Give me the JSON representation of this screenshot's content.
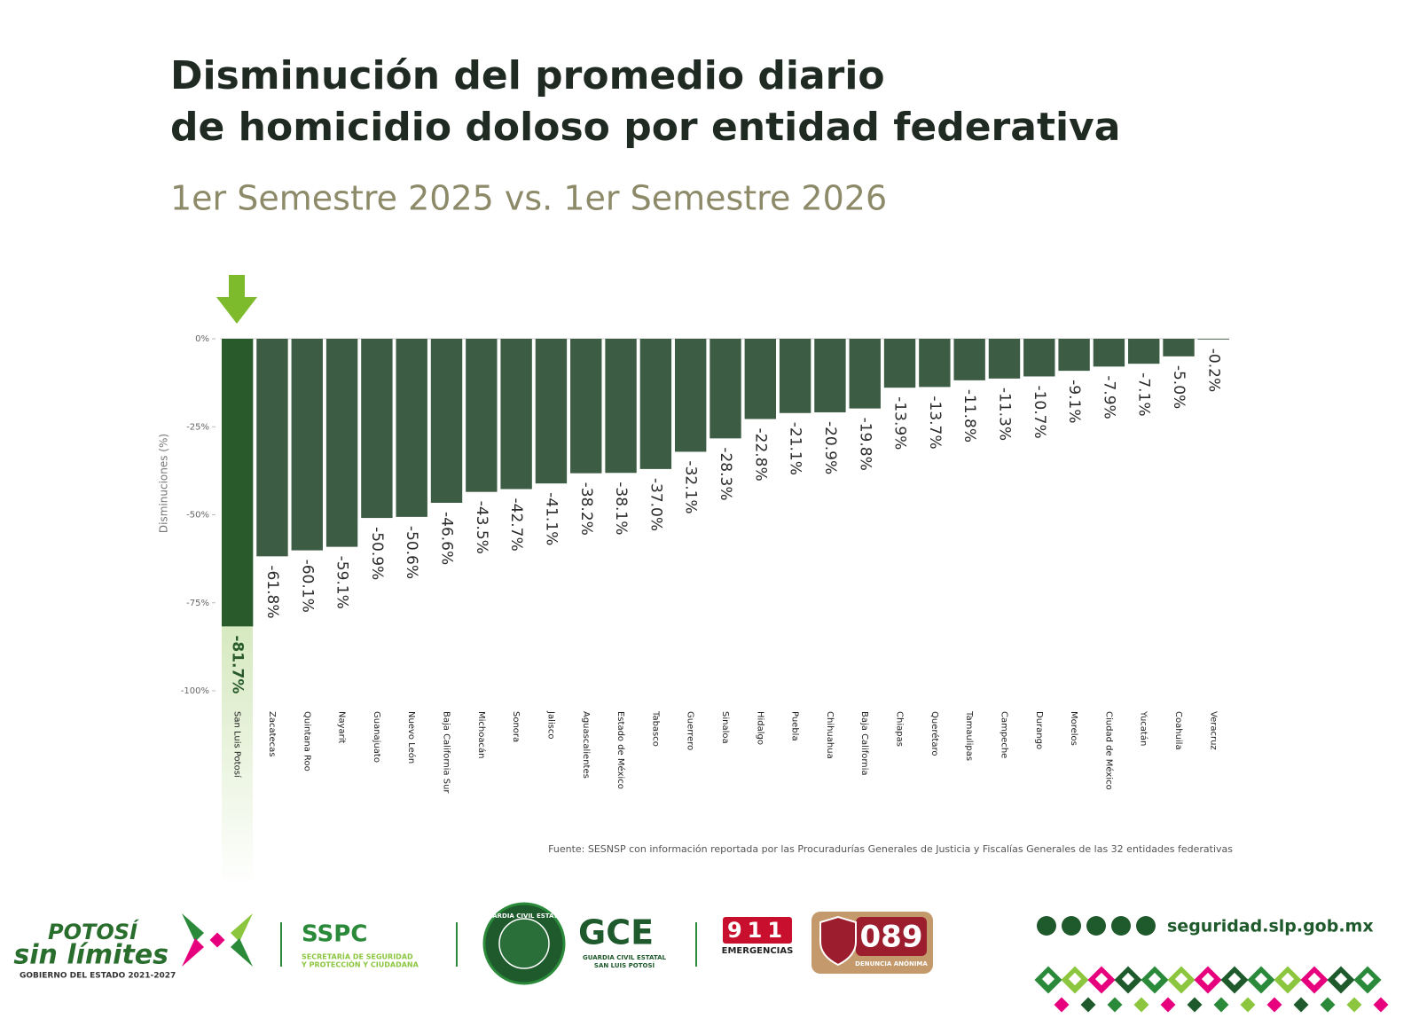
{
  "chart_data": {
    "type": "bar",
    "title": [
      "Disminución del promedio diario",
      "de homicidio doloso por entidad federativa"
    ],
    "subtitle": "1er Semestre 2025 vs. 1er Semestre 2026",
    "y_label": "Disminuciones (%)",
    "source": "Fuente: SESNSP con información reportada por las Procuradurías Generales de Justicia y Fiscalías Generales de las 32 entidades federativas",
    "categories": [
      "San Luis Potosí",
      "Zacatecas",
      "Quintana Roo",
      "Nayarit",
      "Guanajuato",
      "Nuevo León",
      "Baja California Sur",
      "Michoacán",
      "Sonora",
      "Jalisco",
      "Aguascalientes",
      "Estado de México",
      "Tabasco",
      "Guerrero",
      "Sinaloa",
      "Hidalgo",
      "Puebla",
      "Chihuahua",
      "Baja California",
      "Chiapas",
      "Querétaro",
      "Tamaulipas",
      "Campeche",
      "Durango",
      "Morelos",
      "Ciudad de México",
      "Yucatán",
      "Coahuila",
      "Veracruz"
    ],
    "values": [
      -81.7,
      -61.8,
      -60.1,
      -59.1,
      -50.9,
      -50.6,
      -46.6,
      -43.5,
      -42.7,
      -41.1,
      -38.2,
      -38.1,
      -37.0,
      -32.1,
      -28.3,
      -22.8,
      -21.1,
      -20.9,
      -19.8,
      -13.9,
      -13.7,
      -11.8,
      -11.3,
      -10.7,
      -9.1,
      -7.9,
      -7.1,
      -5.0,
      -0.2
    ],
    "value_labels": [
      "-81.7%",
      "-61.8%",
      "-60.1%",
      "-59.1%",
      "-50.9%",
      "-50.6%",
      "-46.6%",
      "-43.5%",
      "-42.7%",
      "-41.1%",
      "-38.2%",
      "-38.1%",
      "-37.0%",
      "-32.1%",
      "-28.3%",
      "-22.8%",
      "-21.1%",
      "-20.9%",
      "-19.8%",
      "-13.9%",
      "-13.7%",
      "-11.8%",
      "-11.3%",
      "-10.7%",
      "-9.1%",
      "-7.9%",
      "-7.1%",
      "-5.0%",
      "-0.2%"
    ],
    "bar_colors": [
      "#285a2c",
      "#3d5c44",
      "#3d5c44",
      "#3d5c44",
      "#3d5c44",
      "#3d5c44",
      "#3d5c44",
      "#3d5c44",
      "#3d5c44",
      "#3d5c44",
      "#3d5c44",
      "#3d5c44",
      "#3d5c44",
      "#3d5c44",
      "#3d5c44",
      "#3d5c44",
      "#3d5c44",
      "#3d5c44",
      "#3d5c44",
      "#3d5c44",
      "#3d5c44",
      "#3d5c44",
      "#3d5c44",
      "#3d5c44",
      "#3d5c44",
      "#3d5c44",
      "#3d5c44",
      "#3d5c44",
      "#3d5c44"
    ],
    "ylim": [
      -100,
      0
    ],
    "yticks": [
      {
        "value": 0,
        "label": "0%"
      },
      {
        "value": -25,
        "label": "-25%"
      },
      {
        "value": -50,
        "label": "-50%"
      },
      {
        "value": -75,
        "label": "-75%"
      },
      {
        "value": -100,
        "label": "-100%"
      }
    ]
  },
  "footer": {
    "potosi": "POTOSÍ",
    "sin_limites": "sin límites",
    "gobierno": "GOBIERNO DEL ESTADO 2021-2027",
    "sspc": "SSPC",
    "sspc_line1": "SECRETARÍA DE SEGURIDAD",
    "sspc_line2": "Y PROTECCIÓN Y CIUDADANA",
    "gce_ring": "GUARDIA CIVIL ESTATAL",
    "gce": "GCE",
    "gce_line1": "GUARDIA CIVIL ESTATAL",
    "gce_line2": "SAN LUIS POTOSÍ",
    "n911": "911",
    "emergencias": "EMERGENCIAS",
    "n089": "089",
    "denuncia": "DENUNCIA ANÓNIMA",
    "website": "seguridad.slp.gob.mx"
  }
}
